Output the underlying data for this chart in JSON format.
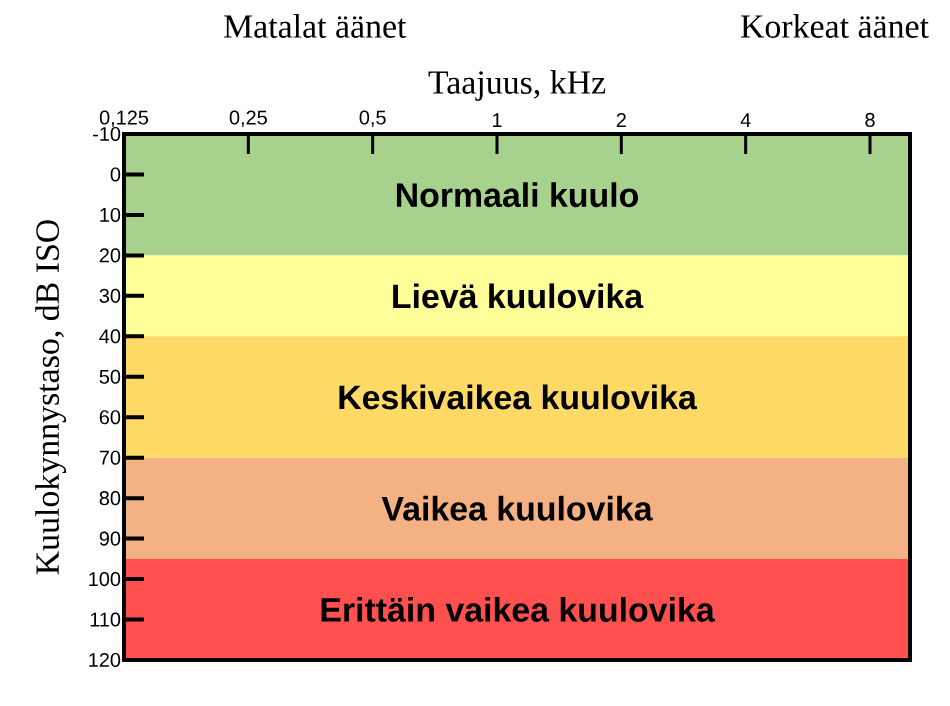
{
  "chart_data": {
    "type": "line",
    "xlabel": "Taajuus, kHz",
    "ylabel": "Kuulokynnystaso, dB ISO",
    "log": "x",
    "xlim": [
      0.125,
      10
    ],
    "ylim": [
      120,
      -10
    ],
    "xticks": [
      {
        "value": 0.125,
        "label": "0,125"
      },
      {
        "value": 0.25,
        "label": "0,25"
      },
      {
        "value": 0.5,
        "label": "0,5"
      },
      {
        "value": 1,
        "label": "1"
      },
      {
        "value": 2,
        "label": "2"
      },
      {
        "value": 4,
        "label": "4"
      },
      {
        "value": 8,
        "label": "8"
      }
    ],
    "yticks": [
      -10,
      0,
      10,
      20,
      30,
      40,
      50,
      60,
      70,
      80,
      90,
      100,
      110,
      120
    ],
    "annotations": [
      "Matalat äänet",
      "Korkeat äänet"
    ],
    "bands": [
      {
        "axis": "y",
        "from": -10,
        "to": 20,
        "label": "Normaali kuulo",
        "color": "#a9d18e"
      },
      {
        "axis": "y",
        "from": 20,
        "to": 40,
        "label": "Lievä kuulovika",
        "color": "#ffff99"
      },
      {
        "axis": "y",
        "from": 40,
        "to": 70,
        "label": "Keskivaikea kuulovika",
        "color": "#ffd966"
      },
      {
        "axis": "y",
        "from": 70,
        "to": 95,
        "label": "Vaikea kuulovika",
        "color": "#f4b183"
      },
      {
        "axis": "y",
        "from": 95,
        "to": 120,
        "label": "Erittäin vaikea kuulovika",
        "color": "#ff5050"
      }
    ]
  }
}
